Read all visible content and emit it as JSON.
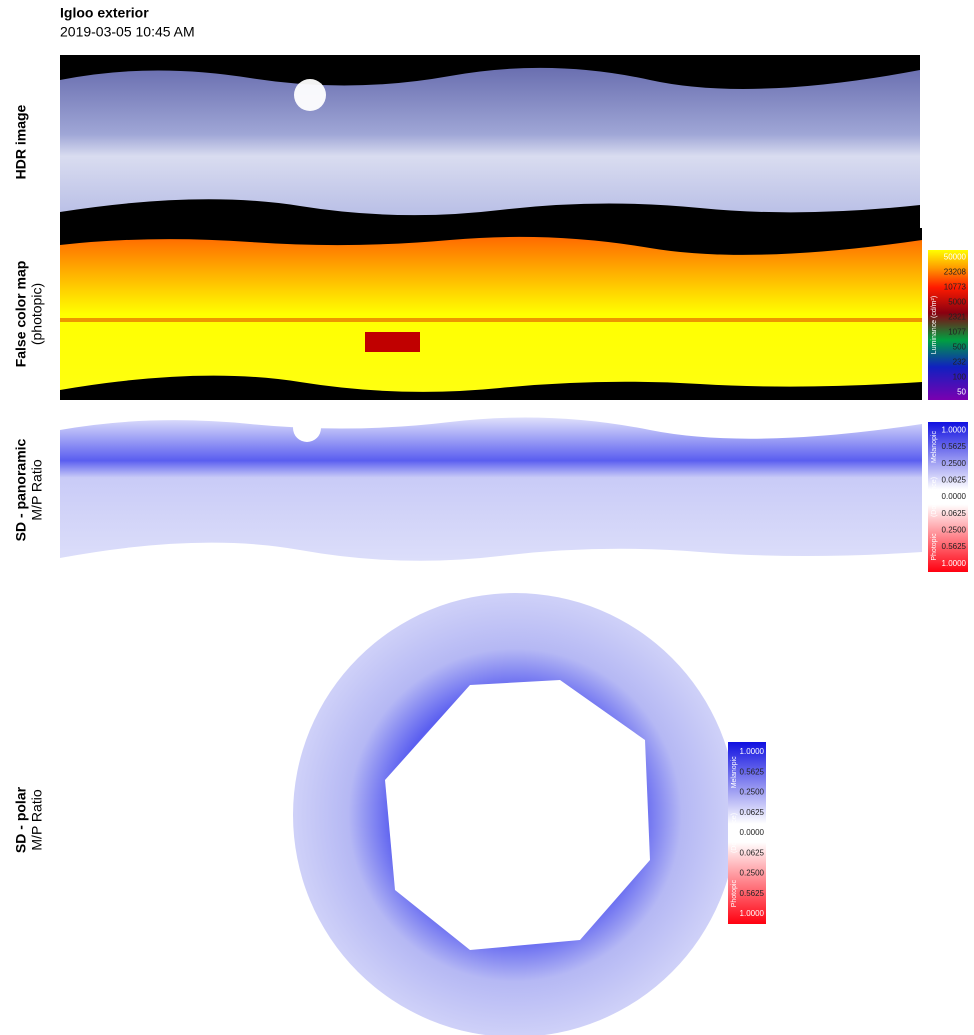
{
  "header": {
    "title": "Igloo exterior",
    "subtitle": "2019-03-05 10:45 AM"
  },
  "panels": [
    {
      "label": [
        "HDR image"
      ]
    },
    {
      "label": [
        "False color map",
        "(photopic)"
      ],
      "legend": {
        "ticks": [
          "50000",
          "23208",
          "10773",
          "5000",
          "2321",
          "1077",
          "500",
          "232",
          "100",
          "50"
        ],
        "side": [
          "Luminance (cd/m²)"
        ]
      }
    },
    {
      "label": [
        "SD - panoramic",
        "M/P Ratio"
      ],
      "legend": {
        "ticks": [
          "1.0000",
          "0.5625",
          "0.2500",
          "0.0625",
          "0.0000",
          "0.0625",
          "0.2500",
          "0.5625",
          "1.0000"
        ],
        "side": [
          "Melanopic",
          "(Dominance)",
          "Photopic"
        ]
      }
    },
    {
      "label": [
        "SD - polar",
        "M/P Ratio"
      ],
      "legend": {
        "ticks": [
          "1.0000",
          "0.5625",
          "0.2500",
          "0.0625",
          "0.0000",
          "0.0625",
          "0.2500",
          "0.5625",
          "1.0000"
        ],
        "side": [
          "Melanopic",
          "(Dominance)",
          "Photopic"
        ]
      }
    }
  ]
}
